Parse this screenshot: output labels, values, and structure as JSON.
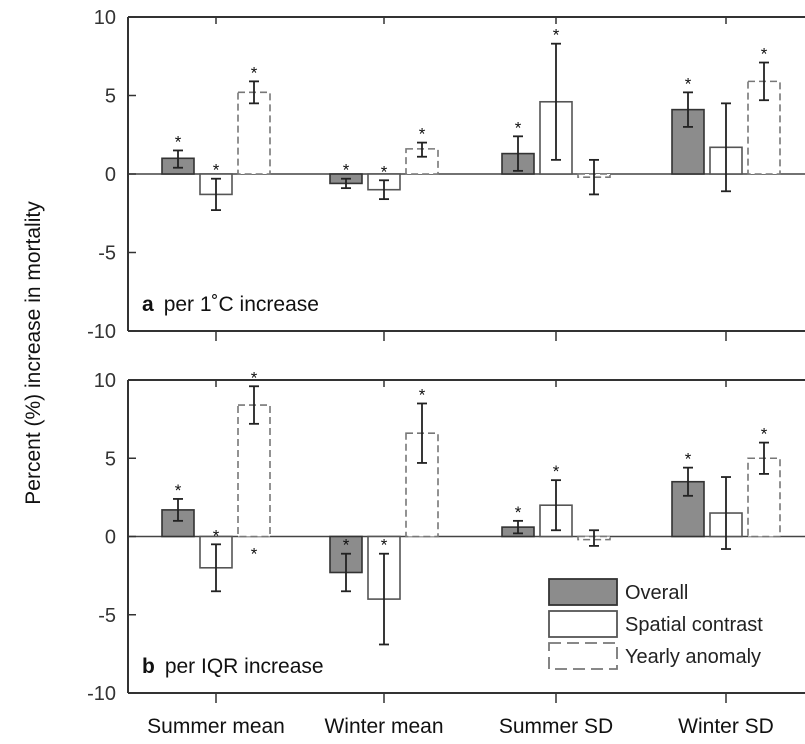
{
  "chart_data": {
    "type": "bar",
    "ylabel": "Percent (%) increase in mortality",
    "categories": [
      "Summer mean",
      "Winter mean",
      "Summer SD",
      "Winter SD"
    ],
    "legend": {
      "placement": "bottom-right of panel b",
      "entries": [
        "Overall",
        "Spatial contrast",
        "Yearly anomaly"
      ]
    },
    "series_styles": {
      "Overall": {
        "fill": "#8c8c8c",
        "stroke": "#333333",
        "dash": "none"
      },
      "Spatial contrast": {
        "fill": "#ffffff",
        "stroke": "#555555",
        "dash": "none"
      },
      "Yearly anomaly": {
        "fill": "#ffffff",
        "stroke": "#777777",
        "dash": "dashed"
      }
    },
    "panels": [
      {
        "label_letter": "a",
        "label_text": "per 1˚C increase",
        "ylim": [
          -10,
          10
        ],
        "yticks": [
          "10",
          "5",
          "0",
          "-5",
          "-10"
        ],
        "series": [
          {
            "name": "Overall",
            "values": [
              1.0,
              -0.6,
              1.3,
              4.1
            ],
            "ci_low": [
              0.4,
              -0.9,
              0.2,
              3.0
            ],
            "ci_high": [
              1.5,
              -0.3,
              2.4,
              5.2
            ],
            "significant": [
              true,
              true,
              true,
              true
            ]
          },
          {
            "name": "Spatial contrast",
            "values": [
              -1.3,
              -1.0,
              4.6,
              1.7
            ],
            "ci_low": [
              -2.3,
              -1.6,
              0.9,
              -1.1
            ],
            "ci_high": [
              -0.3,
              -0.4,
              8.3,
              4.5
            ],
            "significant": [
              true,
              true,
              true,
              false
            ]
          },
          {
            "name": "Yearly anomaly",
            "values": [
              5.2,
              1.6,
              -0.2,
              5.9
            ],
            "ci_low": [
              4.5,
              1.1,
              -1.3,
              4.7
            ],
            "ci_high": [
              5.9,
              2.0,
              0.9,
              7.1
            ],
            "significant": [
              true,
              true,
              false,
              true
            ]
          }
        ]
      },
      {
        "label_letter": "b",
        "label_text": "per IQR increase",
        "ylim": [
          -10,
          10
        ],
        "yticks": [
          "10",
          "5",
          "0",
          "-5",
          "-10"
        ],
        "series": [
          {
            "name": "Overall",
            "values": [
              1.7,
              -2.3,
              0.6,
              3.5
            ],
            "ci_low": [
              1.0,
              -3.5,
              0.2,
              2.6
            ],
            "ci_high": [
              2.4,
              -1.1,
              1.0,
              4.4
            ],
            "significant": [
              true,
              true,
              true,
              true
            ]
          },
          {
            "name": "Spatial contrast",
            "values": [
              -2.0,
              -4.0,
              2.0,
              1.5
            ],
            "ci_low": [
              -3.5,
              -6.9,
              0.4,
              -0.8
            ],
            "ci_high": [
              -0.5,
              -1.1,
              3.6,
              3.8
            ],
            "significant": [
              true,
              true,
              true,
              false
            ]
          },
          {
            "name": "Yearly anomaly",
            "values": [
              8.4,
              6.6,
              -0.2,
              5.0
            ],
            "ci_low": [
              7.2,
              4.7,
              -0.6,
              4.0
            ],
            "ci_high": [
              9.6,
              8.5,
              0.4,
              6.0
            ],
            "significant": [
              true,
              true,
              false,
              true
            ]
          }
        ],
        "extra_marks": [
          {
            "series": "Yearly anomaly",
            "category": "Summer mean",
            "y": -0.7,
            "text": "*"
          }
        ]
      }
    ]
  }
}
